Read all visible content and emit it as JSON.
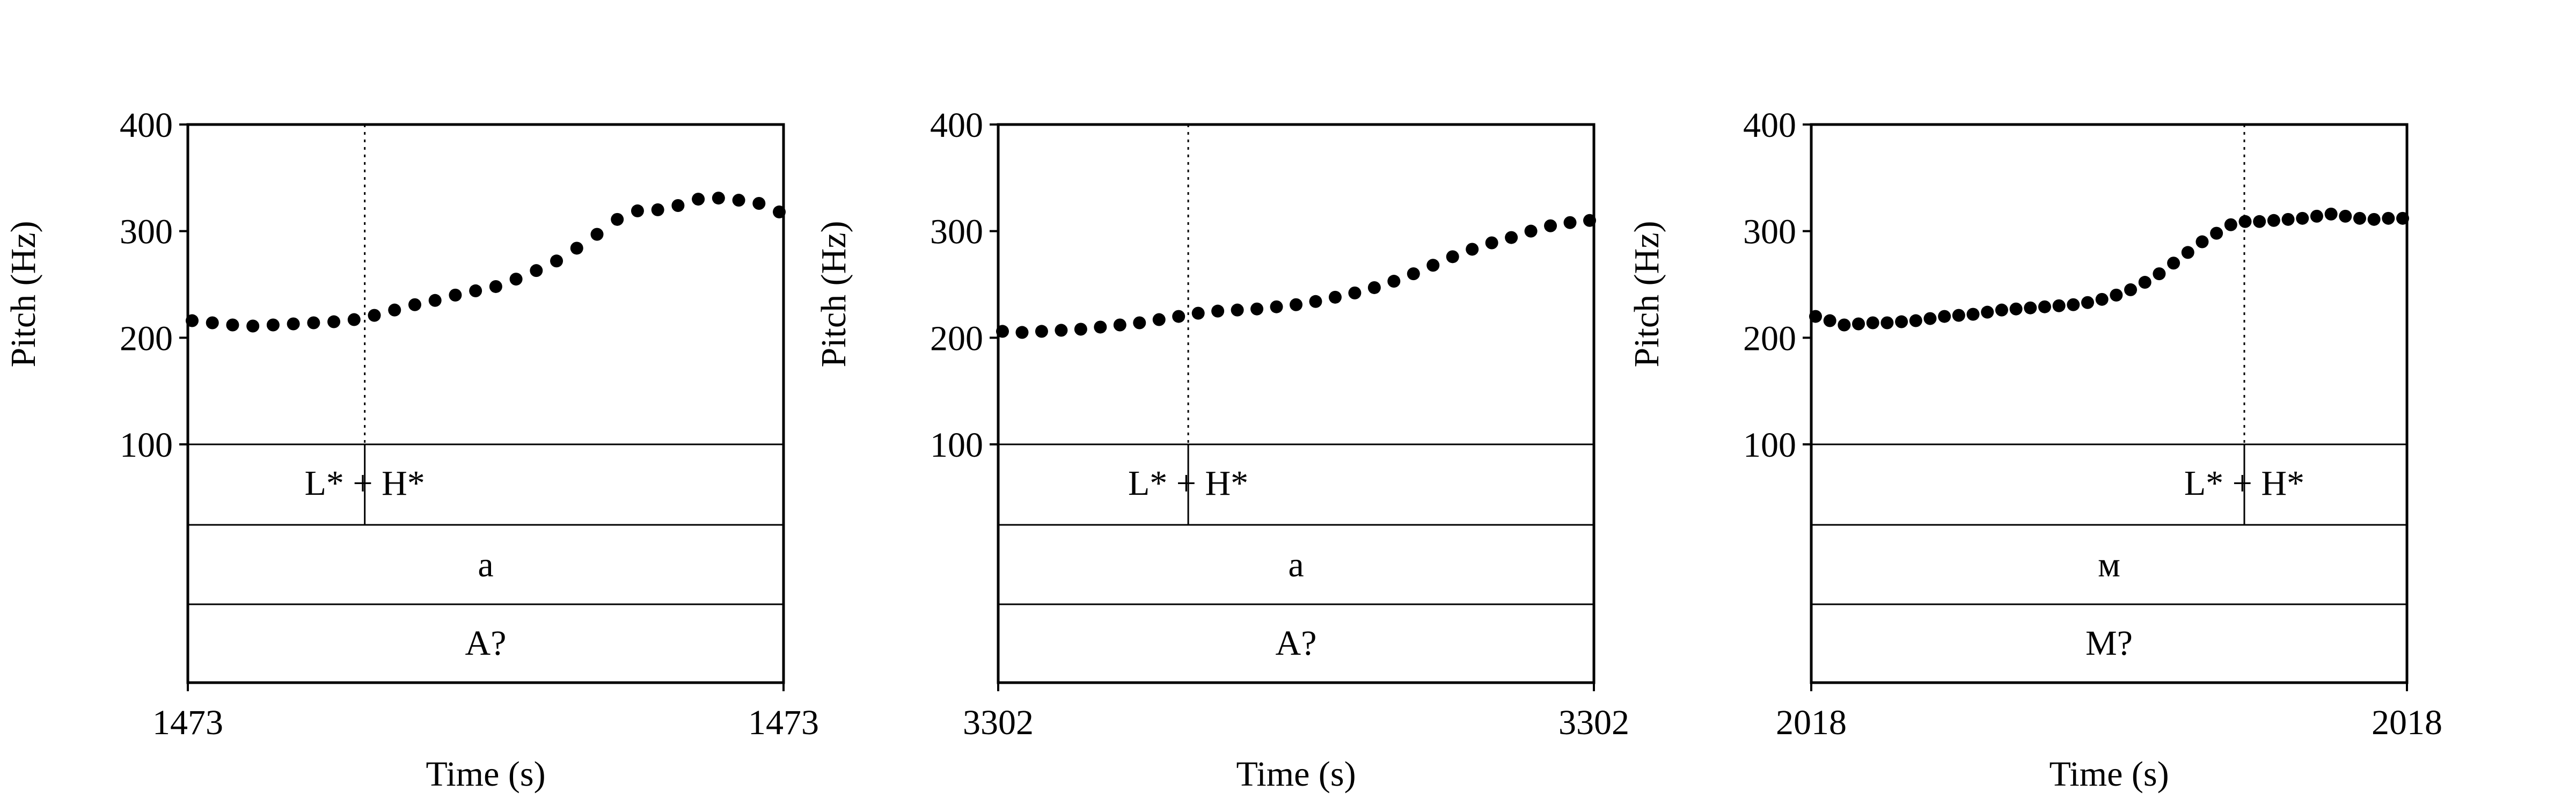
{
  "chart_data": [
    {
      "type": "scatter",
      "ylabel": "Pitch (Hz)",
      "xlabel": "Time (s)",
      "x_start_label": "1473",
      "x_end_label": "1473",
      "ylim": [
        100,
        400
      ],
      "yticks": [
        "100",
        "200",
        "300",
        "400"
      ],
      "tone_label": "L* + H*",
      "tone_frac": 0.297,
      "word_label": "a",
      "sentence_label": "A?",
      "pitch": [
        216,
        214,
        212,
        211,
        212,
        213,
        214,
        215,
        217,
        221,
        226,
        231,
        235,
        240,
        244,
        248,
        255,
        263,
        272,
        284,
        297,
        311,
        319,
        320,
        324,
        330,
        331,
        329,
        326,
        318
      ],
      "grid": false
    },
    {
      "type": "scatter",
      "ylabel": "Pitch (Hz)",
      "xlabel": "Time (s)",
      "x_start_label": "3302",
      "x_end_label": "3302",
      "ylim": [
        100,
        400
      ],
      "yticks": [
        "100",
        "200",
        "300",
        "400"
      ],
      "tone_label": "L* + H*",
      "tone_frac": 0.319,
      "word_label": "a",
      "sentence_label": "A?",
      "pitch": [
        206,
        205,
        206,
        207,
        208,
        210,
        212,
        214,
        217,
        220,
        223,
        225,
        226,
        227,
        229,
        231,
        234,
        238,
        242,
        247,
        253,
        260,
        268,
        276,
        283,
        289,
        294,
        300,
        305,
        308,
        310
      ],
      "grid": false
    },
    {
      "type": "scatter",
      "ylabel": "Pitch (Hz)",
      "xlabel": "Time (s)",
      "x_start_label": "2018",
      "x_end_label": "2018",
      "ylim": [
        100,
        400
      ],
      "yticks": [
        "100",
        "200",
        "300",
        "400"
      ],
      "tone_label": "L* + H*",
      "tone_frac": 0.727,
      "word_label": "м",
      "sentence_label": "М?",
      "pitch": [
        220,
        216,
        212,
        213,
        214,
        214,
        215,
        216,
        218,
        220,
        221,
        222,
        224,
        226,
        227,
        228,
        229,
        230,
        231,
        233,
        236,
        240,
        245,
        252,
        260,
        270,
        280,
        290,
        298,
        306,
        309,
        309,
        310,
        311,
        312,
        314,
        316,
        314,
        312,
        311,
        312,
        312
      ],
      "grid": false
    }
  ]
}
